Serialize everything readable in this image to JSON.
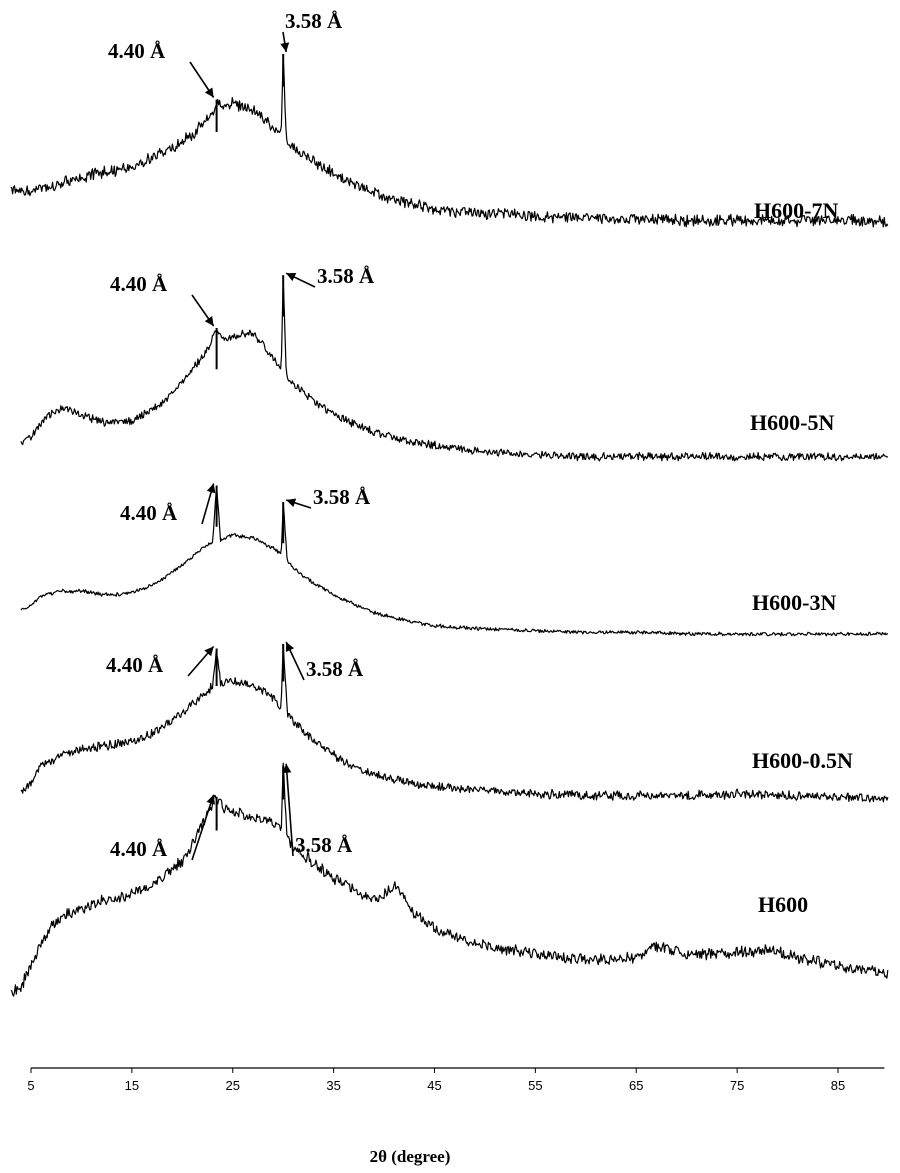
{
  "chart_data": {
    "type": "line",
    "xlabel": "2θ (degree)",
    "ylabel": "",
    "xlim": [
      5,
      90
    ],
    "x_ticks": [
      5,
      15,
      25,
      35,
      45,
      55,
      65,
      75,
      85
    ],
    "grid": false,
    "legend": "labels beside each trace",
    "peaks": [
      {
        "series": "H600-7N",
        "annotations": [
          {
            "label": "4.40 Å",
            "x": 23.4
          },
          {
            "label": "3.58 Å",
            "x": 30.0
          }
        ]
      },
      {
        "series": "H600-5N",
        "annotations": [
          {
            "label": "4.40 Å",
            "x": 23.4
          },
          {
            "label": "3.58 Å",
            "x": 30.0
          }
        ]
      },
      {
        "series": "H600-3N",
        "annotations": [
          {
            "label": "4.40 Å",
            "x": 23.4
          },
          {
            "label": "3.58 Å",
            "x": 30.0
          }
        ]
      },
      {
        "series": "H600-0.5N",
        "annotations": [
          {
            "label": "4.40 Å",
            "x": 23.4
          },
          {
            "label": "3.58 Å",
            "x": 30.0
          }
        ]
      },
      {
        "series": "H600",
        "annotations": [
          {
            "label": "4.40 Å",
            "x": 23.4
          },
          {
            "label": "3.58 Å",
            "x": 30.0
          }
        ]
      }
    ],
    "series": [
      {
        "name": "H600-7N",
        "x": [
          3,
          5,
          7,
          9,
          11,
          13,
          15,
          17,
          19,
          21,
          22,
          23,
          23.4,
          24,
          25,
          26,
          27,
          28,
          29,
          29.8,
          30.0,
          30.3,
          31,
          33,
          35,
          37,
          39,
          41,
          43,
          45,
          47,
          49,
          51,
          55,
          60,
          65,
          70,
          75,
          80,
          85,
          90
        ],
        "y": [
          0.35,
          0.34,
          0.38,
          0.43,
          0.47,
          0.5,
          0.54,
          0.6,
          0.68,
          0.78,
          0.86,
          0.92,
          1.05,
          1.0,
          1.02,
          1.0,
          0.97,
          0.92,
          0.84,
          0.78,
          1.4,
          0.75,
          0.68,
          0.58,
          0.48,
          0.4,
          0.33,
          0.28,
          0.24,
          0.21,
          0.19,
          0.18,
          0.17,
          0.15,
          0.14,
          0.13,
          0.12,
          0.12,
          0.12,
          0.12,
          0.11
        ]
      },
      {
        "name": "H600-5N",
        "x": [
          4,
          5,
          6,
          7,
          8,
          9,
          11,
          13,
          15,
          17,
          19,
          21,
          22.5,
          23.4,
          24,
          25,
          26,
          27,
          28,
          29,
          29.8,
          30.0,
          30.3,
          31,
          33,
          35,
          37,
          39,
          41,
          43,
          45,
          47,
          50,
          55,
          60,
          65,
          70,
          75,
          80,
          85,
          90
        ],
        "y": [
          0.1,
          0.14,
          0.22,
          0.28,
          0.31,
          0.3,
          0.25,
          0.22,
          0.24,
          0.3,
          0.4,
          0.55,
          0.66,
          0.8,
          0.72,
          0.75,
          0.77,
          0.76,
          0.7,
          0.62,
          0.55,
          1.12,
          0.52,
          0.46,
          0.36,
          0.28,
          0.22,
          0.17,
          0.14,
          0.11,
          0.09,
          0.07,
          0.05,
          0.03,
          0.02,
          0.02,
          0.02,
          0.02,
          0.02,
          0.02,
          0.02
        ]
      },
      {
        "name": "H600-3N",
        "x": [
          4,
          5,
          6,
          8,
          10,
          12,
          14,
          16,
          18,
          20,
          22,
          23.0,
          23.4,
          23.8,
          25,
          27,
          29,
          29.8,
          30.0,
          30.4,
          31,
          33,
          35,
          37,
          39,
          41,
          43,
          45,
          50,
          55,
          60,
          65,
          70,
          75,
          80,
          85,
          90
        ],
        "y": [
          0.14,
          0.17,
          0.23,
          0.26,
          0.26,
          0.24,
          0.24,
          0.27,
          0.33,
          0.42,
          0.52,
          0.56,
          0.9,
          0.57,
          0.6,
          0.58,
          0.52,
          0.48,
          0.8,
          0.44,
          0.4,
          0.31,
          0.24,
          0.18,
          0.13,
          0.1,
          0.07,
          0.05,
          0.03,
          0.02,
          0.01,
          0.01,
          0.0,
          0.0,
          0.0,
          0.0,
          0.0
        ]
      },
      {
        "name": "H600-0.5N",
        "x": [
          4,
          5,
          6,
          8,
          10,
          12,
          14,
          16,
          18,
          20,
          22,
          23.0,
          23.4,
          23.8,
          25,
          27,
          29,
          29.8,
          30.0,
          30.4,
          31,
          33,
          35,
          37,
          39,
          41,
          43,
          45,
          50,
          55,
          60,
          65,
          70,
          75,
          80,
          85,
          90
        ],
        "y": [
          0.08,
          0.15,
          0.26,
          0.34,
          0.38,
          0.4,
          0.42,
          0.45,
          0.52,
          0.62,
          0.74,
          0.8,
          1.05,
          0.82,
          0.83,
          0.8,
          0.72,
          0.66,
          1.08,
          0.62,
          0.56,
          0.44,
          0.34,
          0.26,
          0.21,
          0.18,
          0.15,
          0.13,
          0.1,
          0.08,
          0.07,
          0.07,
          0.07,
          0.08,
          0.07,
          0.06,
          0.05
        ]
      },
      {
        "name": "H600",
        "x": [
          3,
          4,
          5,
          6,
          7,
          8,
          10,
          12,
          14,
          16,
          18,
          20,
          21,
          22,
          23,
          23.4,
          24,
          25,
          26,
          27,
          28,
          29,
          29.8,
          30.0,
          30.4,
          31,
          33,
          35,
          37,
          39,
          40,
          41,
          42,
          43,
          45,
          47,
          50,
          55,
          60,
          62,
          65,
          67,
          70,
          75,
          78,
          80,
          85,
          90
        ],
        "y": [
          0.1,
          0.14,
          0.3,
          0.46,
          0.58,
          0.66,
          0.72,
          0.78,
          0.8,
          0.86,
          0.95,
          1.08,
          1.2,
          1.35,
          1.5,
          1.55,
          1.48,
          1.45,
          1.42,
          1.4,
          1.38,
          1.36,
          1.32,
          1.78,
          1.24,
          1.18,
          1.06,
          0.95,
          0.86,
          0.78,
          0.82,
          0.9,
          0.8,
          0.68,
          0.58,
          0.52,
          0.45,
          0.38,
          0.34,
          0.34,
          0.36,
          0.44,
          0.38,
          0.4,
          0.42,
          0.38,
          0.3,
          0.24
        ]
      }
    ]
  }
}
